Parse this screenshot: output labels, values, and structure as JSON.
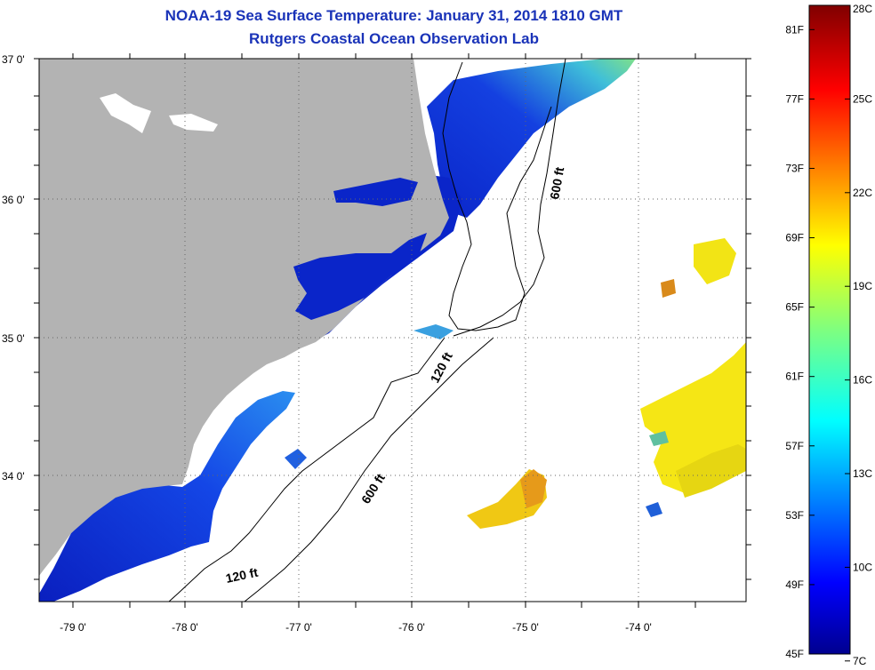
{
  "title": "NOAA-19 Sea Surface Temperature:  January 31, 2014 1810 GMT",
  "subtitle": "Rutgers Coastal Ocean Observation Lab",
  "map": {
    "lat_labels": [
      "37 0'",
      "36 0'",
      "35 0'",
      "34 0'"
    ],
    "lon_labels": [
      "-79 0'",
      "-78 0'",
      "-77 0'",
      "-76 0'",
      "-75 0'",
      "-74 0'"
    ],
    "contour_labels": {
      "c600_north": "600 ft",
      "c120_mid": "120 ft",
      "c600_south": "600 ft",
      "c120_south": "120 ft"
    },
    "land_color": "#b3b3b3",
    "cloud_color": "#ffffff"
  },
  "colorbar": {
    "fahrenheit_labels": [
      "81F",
      "77F",
      "73F",
      "69F",
      "65F",
      "61F",
      "57F",
      "53F",
      "49F",
      "45F"
    ],
    "celsius_labels": [
      "28C",
      "25C",
      "22C",
      "19C",
      "16C",
      "13C",
      "10C",
      "7C"
    ],
    "colormap": "jet",
    "min": "7C",
    "max": "28C"
  },
  "colors": {
    "title": "#1a33b8",
    "sst_cold": "#0a1fcc",
    "sst_mid": "#f5dd12",
    "sst_warm": "#e8a010"
  }
}
